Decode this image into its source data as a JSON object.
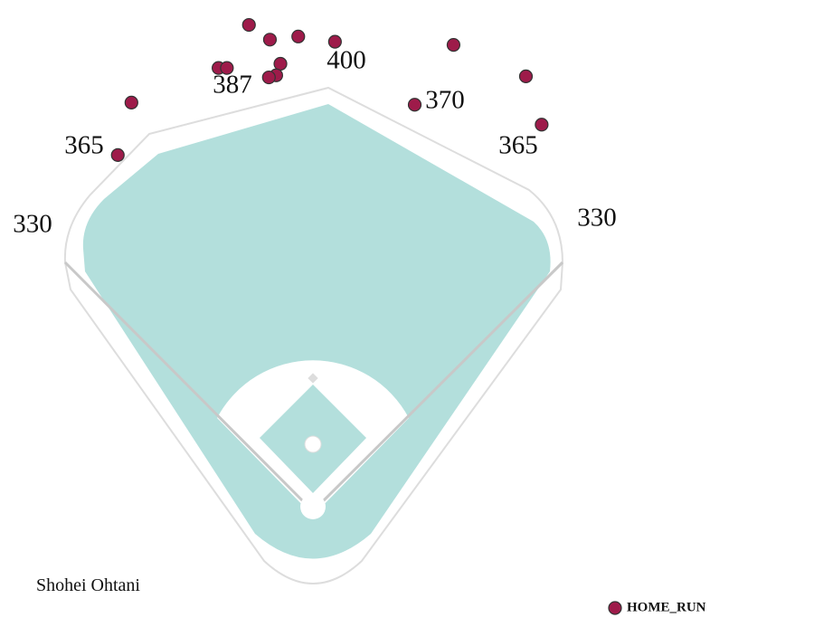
{
  "chart_data": {
    "type": "scatter",
    "title": "Shohei Ohtani",
    "x": [
      -61,
      -41,
      -14,
      21,
      134,
      203,
      218,
      97,
      -31,
      -35,
      -42,
      -90,
      -82,
      -173,
      -186
    ],
    "series": [
      {
        "name": "HOME_RUN",
        "color": "#9e1b4a",
        "values": [
          459,
          445,
          448,
          443,
          440,
          410,
          364,
          383,
          422,
          411,
          409,
          418,
          418,
          385,
          335
        ]
      }
    ],
    "distances": [
      330,
      365,
      387,
      400,
      370,
      365,
      330
    ]
  }
}
